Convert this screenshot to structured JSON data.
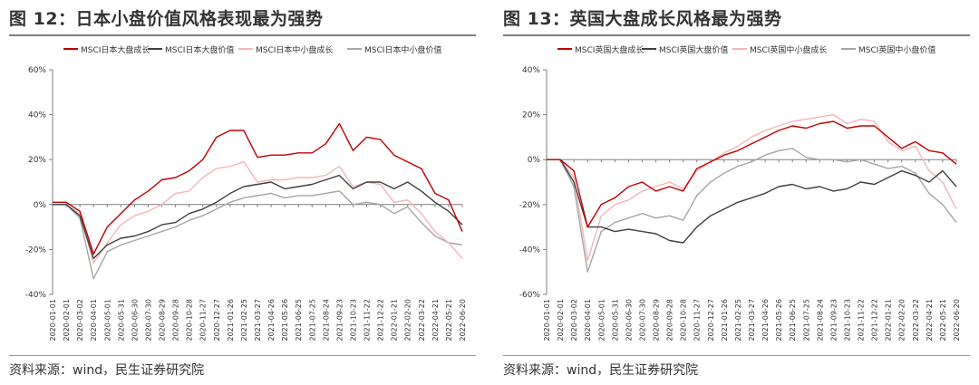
{
  "figures": [
    {
      "title": "图 12：日本小盘价值风格表现最为强势",
      "source": "资料来源：wind，民生证券研究院",
      "chart_data": {
        "type": "line",
        "title": "图 12：日本小盘价值风格表现最为强势",
        "xlabel": "",
        "ylabel": "",
        "ylim": [
          -0.4,
          0.6
        ],
        "yticks": [
          -0.4,
          -0.2,
          0,
          0.2,
          0.4,
          0.6
        ],
        "ytick_labels": [
          "-40%",
          "-20%",
          "0%",
          "20%",
          "40%",
          "60%"
        ],
        "legend_position": "top",
        "grid": false,
        "x": [
          "2020-01-01",
          "2020-02-01",
          "2020-03-02",
          "2020-04-01",
          "2020-05-01",
          "2020-05-31",
          "2020-06-30",
          "2020-07-30",
          "2020-08-29",
          "2020-09-28",
          "2020-10-28",
          "2020-11-27",
          "2020-12-27",
          "2021-01-26",
          "2021-02-25",
          "2021-03-27",
          "2021-04-26",
          "2021-05-26",
          "2021-06-25",
          "2021-07-25",
          "2021-08-24",
          "2021-09-23",
          "2021-10-23",
          "2021-11-22",
          "2021-12-22",
          "2022-01-21",
          "2022-02-20",
          "2022-03-22",
          "2022-04-21",
          "2022-05-21",
          "2022-06-20"
        ],
        "series": [
          {
            "name": "MSCI日本大盘成长",
            "color": "#c00000",
            "values": [
              0.01,
              0.01,
              -0.03,
              -0.22,
              -0.1,
              -0.04,
              0.02,
              0.06,
              0.11,
              0.12,
              0.15,
              0.2,
              0.3,
              0.33,
              0.33,
              0.21,
              0.22,
              0.22,
              0.23,
              0.23,
              0.27,
              0.36,
              0.24,
              0.3,
              0.29,
              0.22,
              0.19,
              0.16,
              0.05,
              0.02,
              -0.12
            ]
          },
          {
            "name": "MSCI日本大盘价值",
            "color": "#404040",
            "values": [
              0.0,
              0.0,
              -0.05,
              -0.24,
              -0.18,
              -0.15,
              -0.14,
              -0.12,
              -0.09,
              -0.08,
              -0.04,
              -0.02,
              0.01,
              0.05,
              0.08,
              0.09,
              0.1,
              0.07,
              0.08,
              0.09,
              0.11,
              0.13,
              0.07,
              0.1,
              0.1,
              0.07,
              0.1,
              0.06,
              0.01,
              -0.03,
              -0.09
            ]
          },
          {
            "name": "MSCI日本中小盘成长",
            "color": "#f4b6b8",
            "values": [
              0.0,
              0.0,
              -0.04,
              -0.26,
              -0.17,
              -0.09,
              -0.05,
              -0.03,
              0.0,
              0.05,
              0.06,
              0.12,
              0.16,
              0.17,
              0.19,
              0.1,
              0.11,
              0.11,
              0.12,
              0.12,
              0.13,
              0.17,
              0.08,
              0.1,
              0.09,
              0.01,
              0.02,
              -0.04,
              -0.12,
              -0.17,
              -0.24
            ]
          },
          {
            "name": "MSCI日本中小盘价值",
            "color": "#a6a6a6",
            "values": [
              0.0,
              0.0,
              -0.06,
              -0.33,
              -0.21,
              -0.18,
              -0.16,
              -0.14,
              -0.12,
              -0.1,
              -0.07,
              -0.05,
              -0.02,
              0.01,
              0.03,
              0.04,
              0.05,
              0.03,
              0.04,
              0.04,
              0.05,
              0.06,
              0.0,
              0.01,
              0.0,
              -0.04,
              -0.01,
              -0.08,
              -0.14,
              -0.17,
              -0.18
            ]
          }
        ]
      }
    },
    {
      "title": "图 13：英国大盘成长风格最为强势",
      "source": "资料来源：wind，民生证券研究院",
      "chart_data": {
        "type": "line",
        "title": "图 13：英国大盘成长风格最为强势",
        "xlabel": "",
        "ylabel": "",
        "ylim": [
          -0.6,
          0.4
        ],
        "yticks": [
          -0.6,
          -0.4,
          -0.2,
          0,
          0.2,
          0.4
        ],
        "ytick_labels": [
          "-60%",
          "-40%",
          "-20%",
          "0%",
          "20%",
          "40%"
        ],
        "legend_position": "top",
        "grid": false,
        "x": [
          "2020-01-01",
          "2020-02-01",
          "2020-03-02",
          "2020-04-01",
          "2020-05-01",
          "2020-05-31",
          "2020-06-30",
          "2020-07-30",
          "2020-08-29",
          "2020-09-28",
          "2020-10-28",
          "2020-11-27",
          "2020-12-27",
          "2021-01-26",
          "2021-02-25",
          "2021-03-27",
          "2021-04-26",
          "2021-05-26",
          "2021-06-25",
          "2021-07-25",
          "2021-08-24",
          "2021-09-23",
          "2021-10-23",
          "2021-11-22",
          "2021-12-22",
          "2022-01-21",
          "2022-02-20",
          "2022-03-22",
          "2022-04-21",
          "2022-05-21",
          "2022-06-20"
        ],
        "series": [
          {
            "name": "MSCI英国大盘成长",
            "color": "#c00000",
            "values": [
              0.0,
              0.0,
              -0.05,
              -0.3,
              -0.2,
              -0.17,
              -0.12,
              -0.1,
              -0.14,
              -0.12,
              -0.14,
              -0.04,
              -0.01,
              0.02,
              0.04,
              0.07,
              0.1,
              0.13,
              0.15,
              0.14,
              0.16,
              0.17,
              0.14,
              0.15,
              0.15,
              0.1,
              0.05,
              0.08,
              0.04,
              0.03,
              -0.02
            ]
          },
          {
            "name": "MSCI英国大盘价值",
            "color": "#404040",
            "values": [
              0.0,
              0.0,
              -0.1,
              -0.3,
              -0.3,
              -0.32,
              -0.31,
              -0.32,
              -0.33,
              -0.36,
              -0.37,
              -0.3,
              -0.25,
              -0.22,
              -0.19,
              -0.17,
              -0.15,
              -0.12,
              -0.11,
              -0.13,
              -0.12,
              -0.14,
              -0.13,
              -0.1,
              -0.11,
              -0.08,
              -0.05,
              -0.07,
              -0.1,
              -0.05,
              -0.12
            ]
          },
          {
            "name": "MSCI英国中小盘成长",
            "color": "#f4b6b8",
            "values": [
              0.0,
              0.0,
              -0.08,
              -0.45,
              -0.25,
              -0.2,
              -0.18,
              -0.14,
              -0.12,
              -0.1,
              -0.13,
              -0.05,
              -0.01,
              0.03,
              0.06,
              0.1,
              0.13,
              0.15,
              0.17,
              0.18,
              0.19,
              0.2,
              0.16,
              0.18,
              0.17,
              0.08,
              0.04,
              0.06,
              -0.05,
              -0.1,
              -0.22
            ]
          },
          {
            "name": "MSCI英国中小盘价值",
            "color": "#a6a6a6",
            "values": [
              0.0,
              0.0,
              -0.12,
              -0.5,
              -0.32,
              -0.28,
              -0.26,
              -0.24,
              -0.26,
              -0.25,
              -0.27,
              -0.16,
              -0.1,
              -0.06,
              -0.03,
              -0.01,
              0.02,
              0.04,
              0.05,
              0.01,
              0.0,
              0.0,
              -0.01,
              0.0,
              -0.02,
              -0.04,
              -0.03,
              -0.06,
              -0.15,
              -0.2,
              -0.28
            ]
          }
        ]
      }
    }
  ]
}
